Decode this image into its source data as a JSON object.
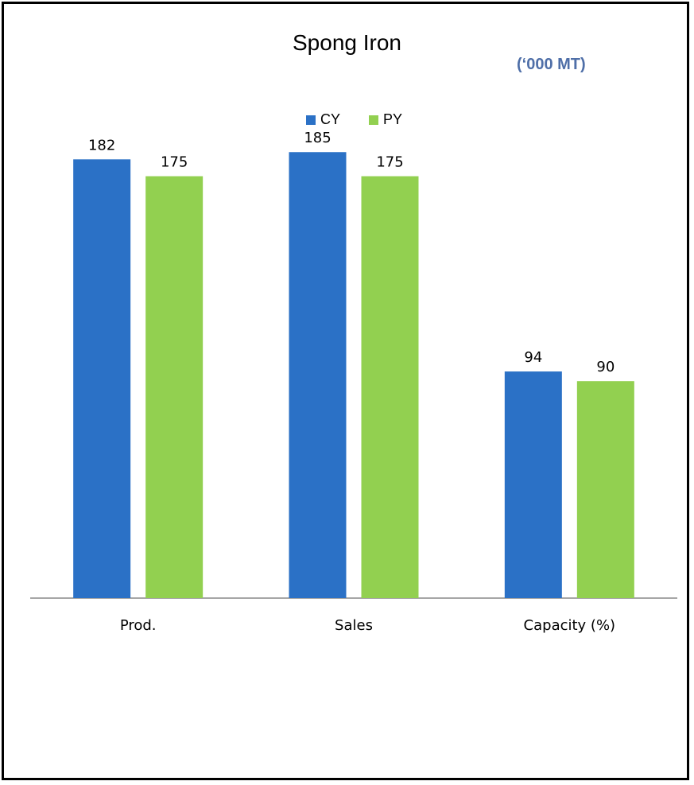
{
  "chart_data": {
    "type": "bar",
    "title": "Spong Iron",
    "unit_label": "(‘000 MT)",
    "categories": [
      "Prod.",
      "Sales",
      "Capacity (%)"
    ],
    "series": [
      {
        "name": "CY",
        "values": [
          182,
          185,
          94
        ],
        "color": "#2b71c6"
      },
      {
        "name": "PY",
        "values": [
          175,
          175,
          90
        ],
        "color": "#92d050"
      }
    ],
    "ylim": [
      0,
      225
    ],
    "grid": false,
    "legend_position": "top-center"
  },
  "colors": {
    "unit_label": "#4f6fa8",
    "axis": "#888888"
  }
}
